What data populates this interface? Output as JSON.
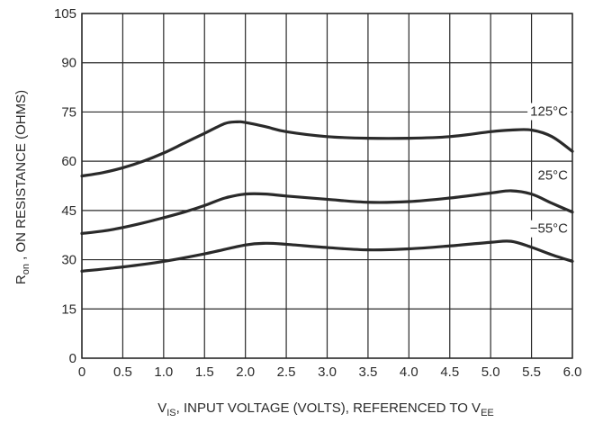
{
  "chart_data": {
    "type": "line",
    "xlabel": {
      "prefix": "V",
      "prefix_sub": "IS",
      "main": ", INPUT VOLTAGE (VOLTS), REFERENCED TO V",
      "suffix_sub": "EE"
    },
    "ylabel": {
      "prefix": "R",
      "prefix_sub": "on",
      "main": " , ON RESISTANCE (OHMS)"
    },
    "xlim": [
      0,
      6.0
    ],
    "ylim": [
      0,
      105
    ],
    "xticks": [
      0,
      0.5,
      1.0,
      1.5,
      2.0,
      2.5,
      3.0,
      3.5,
      4.0,
      4.5,
      5.0,
      5.5,
      6.0
    ],
    "xtick_labels": [
      "0",
      "0.5",
      "1.0",
      "1.5",
      "2.0",
      "2.5",
      "3.0",
      "3.5",
      "4.0",
      "4.5",
      "5.0",
      "5.5",
      "6.0"
    ],
    "yticks": [
      0,
      15,
      30,
      45,
      60,
      75,
      90,
      105
    ],
    "ytick_labels": [
      "0",
      "15",
      "30",
      "45",
      "60",
      "75",
      "90",
      "105"
    ],
    "grid": true,
    "line_color": "#2a2a2a",
    "series": [
      {
        "name": "125°C",
        "x": [
          0,
          0.25,
          0.5,
          0.75,
          1.0,
          1.25,
          1.5,
          1.75,
          1.9,
          2.0,
          2.25,
          2.5,
          3.0,
          3.5,
          4.0,
          4.5,
          5.0,
          5.25,
          5.5,
          5.75,
          6.0
        ],
        "y": [
          55.5,
          56.5,
          58,
          60,
          62.5,
          65.5,
          68.5,
          71.5,
          72,
          71.8,
          70.5,
          69,
          67.5,
          67,
          67,
          67.5,
          69,
          69.5,
          69.5,
          67.5,
          63
        ]
      },
      {
        "name": "25°C",
        "x": [
          0,
          0.25,
          0.5,
          0.75,
          1.0,
          1.25,
          1.5,
          1.75,
          2.0,
          2.25,
          2.5,
          3.0,
          3.5,
          4.0,
          4.5,
          5.0,
          5.25,
          5.5,
          5.75,
          6.0
        ],
        "y": [
          38,
          38.7,
          39.8,
          41.2,
          42.8,
          44.5,
          46.5,
          48.8,
          50,
          50,
          49.4,
          48.4,
          47.5,
          47.7,
          48.8,
          50.3,
          51,
          50,
          47.2,
          44.5
        ]
      },
      {
        "name": "−55°C",
        "x": [
          0,
          0.5,
          1.0,
          1.5,
          2.0,
          2.25,
          2.5,
          3.0,
          3.5,
          4.0,
          4.5,
          5.0,
          5.25,
          5.5,
          5.75,
          6.0
        ],
        "y": [
          26.5,
          27.8,
          29.5,
          31.8,
          34.5,
          35,
          34.7,
          33.7,
          33,
          33.3,
          34.2,
          35.3,
          35.6,
          33.8,
          31.5,
          29.5
        ]
      }
    ]
  }
}
